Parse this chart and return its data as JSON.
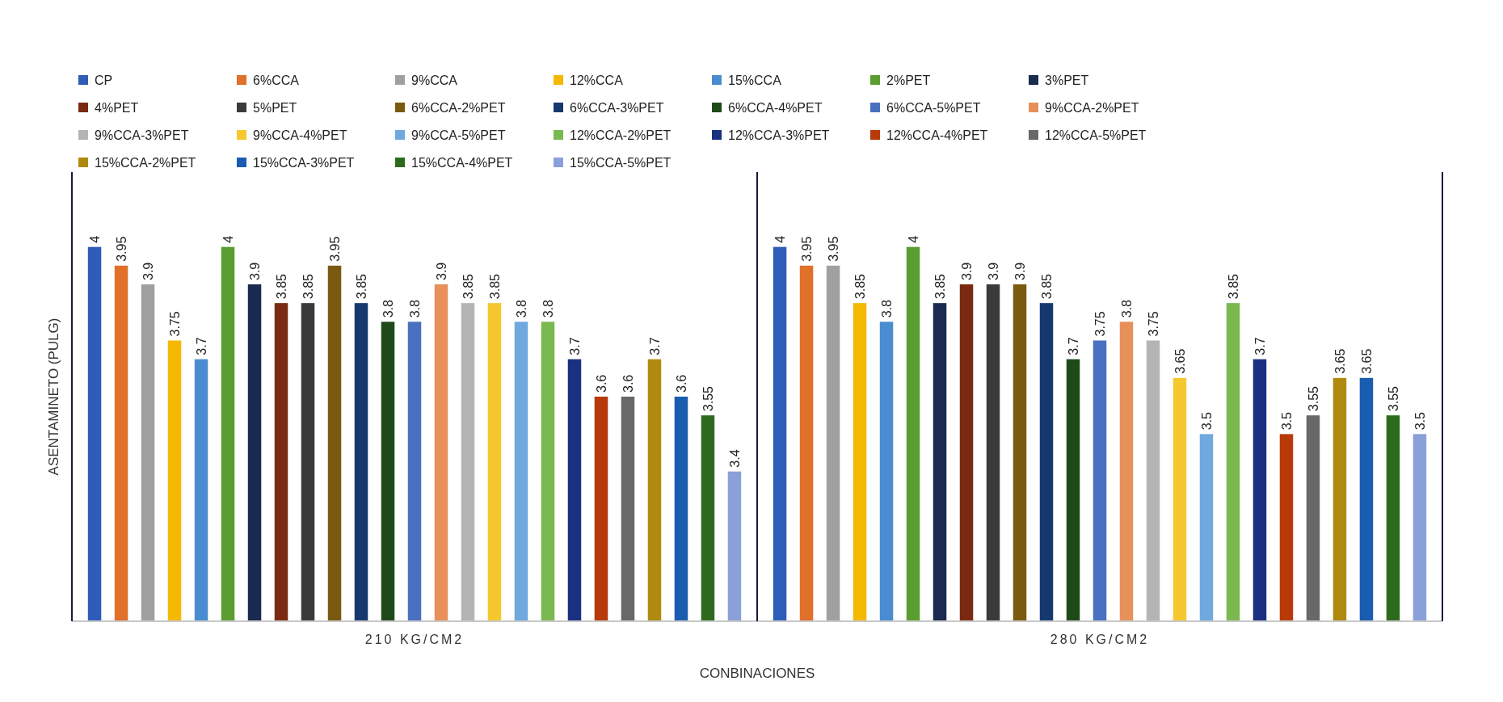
{
  "chart_data": {
    "type": "bar",
    "categories": [
      "210 KG/CM2",
      "280 KG/CM2"
    ],
    "xlabel": "CONBINACIONES",
    "ylabel": "ASENTAMINETO (PULG)",
    "ylim": [
      3,
      4.2
    ],
    "data_labels": true,
    "legend": "top",
    "series": [
      {
        "name": "CP",
        "color": "#2e5cb8",
        "values": [
          4,
          4
        ]
      },
      {
        "name": "6%CCA",
        "color": "#e0702a",
        "values": [
          3.95,
          3.95
        ]
      },
      {
        "name": "9%CCA",
        "color": "#a0a0a0",
        "values": [
          3.9,
          3.95
        ]
      },
      {
        "name": "12%CCA",
        "color": "#f5b800",
        "values": [
          3.75,
          3.85
        ]
      },
      {
        "name": "15%CCA",
        "color": "#4a8cd0",
        "values": [
          3.7,
          3.8
        ]
      },
      {
        "name": "2%PET",
        "color": "#5a9e32",
        "values": [
          4,
          4
        ]
      },
      {
        "name": "3%PET",
        "color": "#1a2a50",
        "values": [
          3.9,
          3.85
        ]
      },
      {
        "name": "4%PET",
        "color": "#7a2a10",
        "values": [
          3.85,
          3.9
        ]
      },
      {
        "name": "5%PET",
        "color": "#3a3a3a",
        "values": [
          3.85,
          3.9
        ]
      },
      {
        "name": "6%CCA-2%PET",
        "color": "#7a5a10",
        "values": [
          3.95,
          3.9
        ]
      },
      {
        "name": "6%CCA-3%PET",
        "color": "#16386e",
        "values": [
          3.85,
          3.85
        ]
      },
      {
        "name": "6%CCA-4%PET",
        "color": "#1e4a1a",
        "values": [
          3.8,
          3.7
        ]
      },
      {
        "name": "6%CCA-5%PET",
        "color": "#4a70c0",
        "values": [
          3.8,
          3.75
        ]
      },
      {
        "name": "9%CCA-2%PET",
        "color": "#e8905a",
        "values": [
          3.9,
          3.8
        ]
      },
      {
        "name": "9%CCA-3%PET",
        "color": "#b4b4b4",
        "values": [
          3.85,
          3.75
        ]
      },
      {
        "name": "9%CCA-4%PET",
        "color": "#f5c830",
        "values": [
          3.85,
          3.65
        ]
      },
      {
        "name": "9%CCA-5%PET",
        "color": "#70a8e0",
        "values": [
          3.8,
          3.5
        ]
      },
      {
        "name": "12%CCA-2%PET",
        "color": "#7ab850",
        "values": [
          3.8,
          3.85
        ]
      },
      {
        "name": "12%CCA-3%PET",
        "color": "#1a3080",
        "values": [
          3.7,
          3.7
        ]
      },
      {
        "name": "12%CCA-4%PET",
        "color": "#b83a0a",
        "values": [
          3.6,
          3.5
        ]
      },
      {
        "name": "12%CCA-5%PET",
        "color": "#686868",
        "values": [
          3.6,
          3.55
        ]
      },
      {
        "name": "15%CCA-2%PET",
        "color": "#b08a10",
        "values": [
          3.7,
          3.65
        ]
      },
      {
        "name": "15%CCA-3%PET",
        "color": "#1a5cb0",
        "values": [
          3.6,
          3.65
        ]
      },
      {
        "name": "15%CCA-4%PET",
        "color": "#2e6a1e",
        "values": [
          3.55,
          3.55
        ]
      },
      {
        "name": "15%CCA-5%PET",
        "color": "#8aa0d8",
        "values": [
          3.4,
          3.5
        ]
      }
    ]
  }
}
